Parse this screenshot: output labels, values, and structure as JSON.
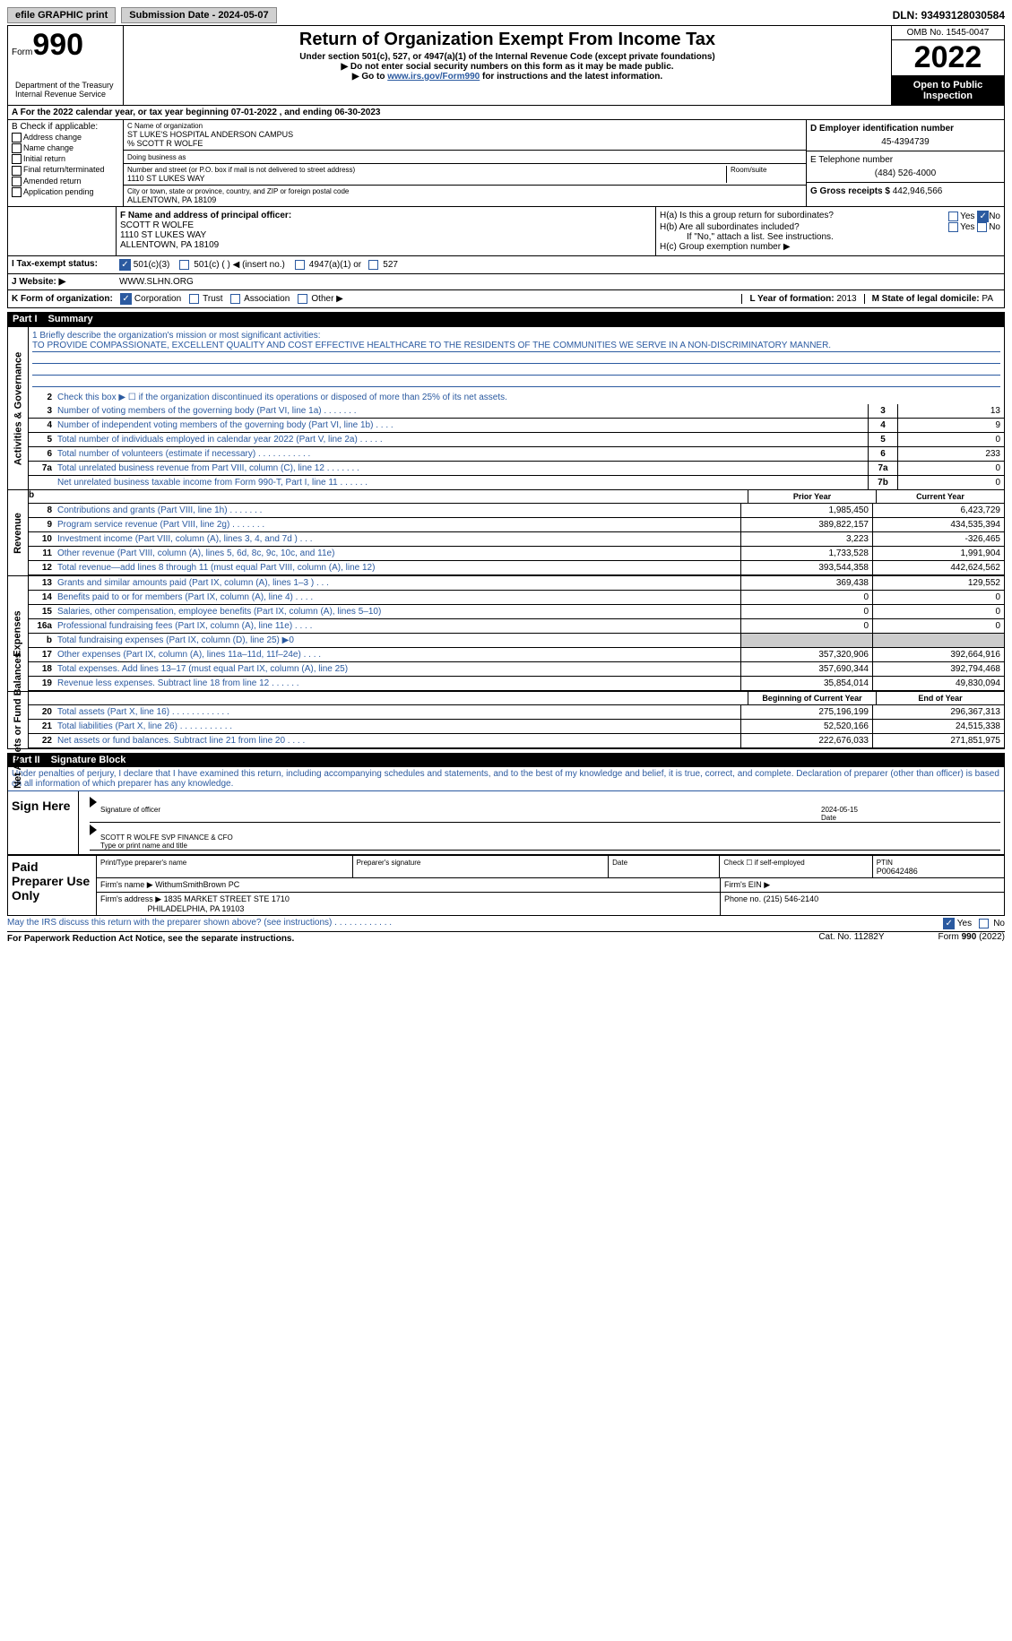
{
  "topbar": {
    "efile": "efile GRAPHIC print",
    "submission_label": "Submission Date - 2024-05-07",
    "dln_label": "DLN: 93493128030584"
  },
  "header": {
    "form_prefix": "Form",
    "form_number": "990",
    "title": "Return of Organization Exempt From Income Tax",
    "subtitle1": "Under section 501(c), 527, or 4947(a)(1) of the Internal Revenue Code (except private foundations)",
    "subtitle2": "▶ Do not enter social security numbers on this form as it may be made public.",
    "subtitle3_prefix": "▶ Go to ",
    "subtitle3_link": "www.irs.gov/Form990",
    "subtitle3_suffix": " for instructions and the latest information.",
    "omb": "OMB No. 1545-0047",
    "year": "2022",
    "open_public": "Open to Public Inspection",
    "department": "Department of the Treasury Internal Revenue Service"
  },
  "section_a": {
    "cal_year": "A For the 2022 calendar year, or tax year beginning 07-01-2022   , and ending 06-30-2023"
  },
  "section_b": {
    "header": "B Check if applicable:",
    "items": [
      "Address change",
      "Name change",
      "Initial return",
      "Final return/terminated",
      "Amended return",
      "Application pending"
    ]
  },
  "section_c": {
    "name_label": "C Name of organization",
    "name": "ST LUKE'S HOSPITAL ANDERSON CAMPUS",
    "care_of": "% SCOTT R WOLFE",
    "dba_label": "Doing business as",
    "addr_label": "Number and street (or P.O. box if mail is not delivered to street address)",
    "room_label": "Room/suite",
    "address": "1110 ST LUKES WAY",
    "city_label": "City or town, state or province, country, and ZIP or foreign postal code",
    "citystate": "ALLENTOWN, PA  18109"
  },
  "section_d": {
    "label": "D Employer identification number",
    "value": "45-4394739"
  },
  "section_e": {
    "label": "E Telephone number",
    "value": "(484) 526-4000"
  },
  "section_g": {
    "label": "G Gross receipts $",
    "value": "442,946,566"
  },
  "section_f": {
    "label": "F Name and address of principal officer:",
    "name": "SCOTT R WOLFE",
    "addr": "1110 ST LUKES WAY",
    "city": "ALLENTOWN, PA  18109"
  },
  "section_h": {
    "ha": "H(a)  Is this a group return for subordinates?",
    "hb": "H(b)  Are all subordinates included?",
    "note": "If \"No,\" attach a list. See instructions.",
    "hc": "H(c)  Group exemption number ▶",
    "yes": "Yes",
    "no": "No"
  },
  "section_i": {
    "label": "I   Tax-exempt status:",
    "opt1": "501(c)(3)",
    "opt2": "501(c) (   ) ◀ (insert no.)",
    "opt3": "4947(a)(1) or",
    "opt4": "527"
  },
  "section_j": {
    "label": "J   Website: ▶",
    "value": "WWW.SLHN.ORG"
  },
  "section_k": {
    "label": "K Form of organization:",
    "opts": [
      "Corporation",
      "Trust",
      "Association",
      "Other ▶"
    ],
    "l_label": "L Year of formation:",
    "l_value": "2013",
    "m_label": "M State of legal domicile:",
    "m_value": "PA"
  },
  "part1": {
    "num": "Part I",
    "title": "Summary"
  },
  "mission": {
    "label": "1   Briefly describe the organization's mission or most significant activities:",
    "text": "TO PROVIDE COMPASSIONATE, EXCELLENT QUALITY AND COST EFFECTIVE HEALTHCARE TO THE RESIDENTS OF THE COMMUNITIES WE SERVE IN A NON-DISCRIMINATORY MANNER."
  },
  "line2_text": "Check this box ▶ ☐ if the organization discontinued its operations or disposed of more than 25% of its net assets.",
  "side_labels": {
    "activities": "Activities & Governance",
    "revenue": "Revenue",
    "expenses": "Expenses",
    "netassets": "Net Assets or Fund Balances"
  },
  "governance": [
    {
      "n": "3",
      "d": "Number of voting members of the governing body (Part VI, line 1a)   .    .    .    .    .    .    .",
      "b": "3",
      "v": "13"
    },
    {
      "n": "4",
      "d": "Number of independent voting members of the governing body (Part VI, line 1b)  .    .    .    .",
      "b": "4",
      "v": "9"
    },
    {
      "n": "5",
      "d": "Total number of individuals employed in calendar year 2022 (Part V, line 2a)   .    .    .    .    .",
      "b": "5",
      "v": "0"
    },
    {
      "n": "6",
      "d": "Total number of volunteers (estimate if necessary)     .    .    .    .    .    .    .    .    .    .    .",
      "b": "6",
      "v": "233"
    },
    {
      "n": "7a",
      "d": "Total unrelated business revenue from Part VIII, column (C), line 12     .    .    .    .    .    .    .",
      "b": "7a",
      "v": "0"
    },
    {
      "n": "",
      "d": "Net unrelated business taxable income from Form 990-T, Part I, line 11   .    .    .    .    .    .",
      "b": "7b",
      "v": "0"
    }
  ],
  "col_headers": {
    "b": "b",
    "prior": "Prior Year",
    "current": "Current Year"
  },
  "revenue": [
    {
      "n": "8",
      "d": "Contributions and grants (Part VIII, line 1h)   .    .    .    .    .    .    .",
      "p": "1,985,450",
      "c": "6,423,729"
    },
    {
      "n": "9",
      "d": "Program service revenue (Part VIII, line 2g)   .    .    .    .    .    .    .",
      "p": "389,822,157",
      "c": "434,535,394"
    },
    {
      "n": "10",
      "d": "Investment income (Part VIII, column (A), lines 3, 4, and 7d )   .    .    .",
      "p": "3,223",
      "c": "-326,465"
    },
    {
      "n": "11",
      "d": "Other revenue (Part VIII, column (A), lines 5, 6d, 8c, 9c, 10c, and 11e)",
      "p": "1,733,528",
      "c": "1,991,904"
    },
    {
      "n": "12",
      "d": "Total revenue—add lines 8 through 11 (must equal Part VIII, column (A), line 12)",
      "p": "393,544,358",
      "c": "442,624,562"
    }
  ],
  "expenses": [
    {
      "n": "13",
      "d": "Grants and similar amounts paid (Part IX, column (A), lines 1–3 )   .    .    .",
      "p": "369,438",
      "c": "129,552"
    },
    {
      "n": "14",
      "d": "Benefits paid to or for members (Part IX, column (A), line 4)  .    .    .    .",
      "p": "0",
      "c": "0"
    },
    {
      "n": "15",
      "d": "Salaries, other compensation, employee benefits (Part IX, column (A), lines 5–10)",
      "p": "0",
      "c": "0"
    },
    {
      "n": "16a",
      "d": "Professional fundraising fees (Part IX, column (A), line 11e)   .    .    .    .",
      "p": "0",
      "c": "0"
    },
    {
      "n": "b",
      "d": "Total fundraising expenses (Part IX, column (D), line 25) ▶0",
      "p": "",
      "c": "",
      "shaded": true
    },
    {
      "n": "17",
      "d": "Other expenses (Part IX, column (A), lines 11a–11d, 11f–24e)   .    .    .    .",
      "p": "357,320,906",
      "c": "392,664,916"
    },
    {
      "n": "18",
      "d": "Total expenses. Add lines 13–17 (must equal Part IX, column (A), line 25)",
      "p": "357,690,344",
      "c": "392,794,468"
    },
    {
      "n": "19",
      "d": "Revenue less expenses. Subtract line 18 from line 12  .    .    .    .    .    .",
      "p": "35,854,014",
      "c": "49,830,094"
    }
  ],
  "na_headers": {
    "begin": "Beginning of Current Year",
    "end": "End of Year"
  },
  "netassets": [
    {
      "n": "20",
      "d": "Total assets (Part X, line 16)  .    .    .    .    .    .    .    .    .    .    .    .",
      "p": "275,196,199",
      "c": "296,367,313"
    },
    {
      "n": "21",
      "d": "Total liabilities (Part X, line 26)  .    .    .    .    .    .    .    .    .    .    .",
      "p": "52,520,166",
      "c": "24,515,338"
    },
    {
      "n": "22",
      "d": "Net assets or fund balances. Subtract line 21 from line 20   .    .    .    .",
      "p": "222,676,033",
      "c": "271,851,975"
    }
  ],
  "part2": {
    "num": "Part II",
    "title": "Signature Block"
  },
  "penalties": "Under penalties of perjury, I declare that I have examined this return, including accompanying schedules and statements, and to the best of my knowledge and belief, it is true, correct, and complete. Declaration of preparer (other than officer) is based on all information of which preparer has any knowledge.",
  "sign": {
    "here": "Sign Here",
    "sig_label": "Signature of officer",
    "date": "2024-05-15",
    "date_label": "Date",
    "name": "SCOTT R WOLFE  SVP FINANCE & CFO",
    "name_label": "Type or print name and title"
  },
  "preparer": {
    "label": "Paid Preparer Use Only",
    "print_name_label": "Print/Type preparer's name",
    "sig_label": "Preparer's signature",
    "date_label": "Date",
    "check_label": "Check ☐ if self-employed",
    "ptin_label": "PTIN",
    "ptin": "P00642486",
    "firm_name_label": "Firm's name    ▶",
    "firm_name": "WithumSmithBrown PC",
    "firm_ein_label": "Firm's EIN ▶",
    "firm_addr_label": "Firm's address ▶",
    "firm_addr": "1835 MARKET STREET STE 1710",
    "firm_city": "PHILADELPHIA, PA  19103",
    "phone_label": "Phone no.",
    "phone": "(215) 546-2140"
  },
  "discuss": {
    "text": "May the IRS discuss this return with the preparer shown above? (see instructions)   .    .    .    .    .    .    .    .    .    .    .    .",
    "yes": "Yes",
    "no": "No"
  },
  "footer": {
    "paperwork": "For Paperwork Reduction Act Notice, see the separate instructions.",
    "cat": "Cat. No. 11282Y",
    "form": "Form 990 (2022)"
  }
}
